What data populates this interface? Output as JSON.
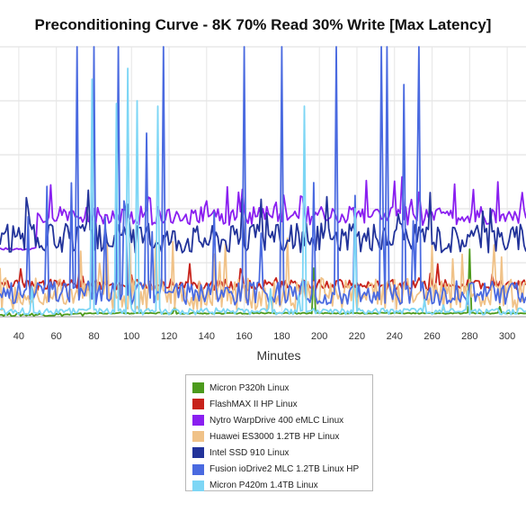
{
  "chart_data": {
    "type": "line",
    "title": "Preconditioning Curve - 8K 70% Read 30% Write [Max Latency]",
    "xlabel": "Minutes",
    "ylabel": "",
    "xlim": [
      30,
      310
    ],
    "x_ticks": [
      40,
      60,
      80,
      100,
      120,
      140,
      160,
      180,
      200,
      220,
      240,
      260,
      280,
      300
    ],
    "ylim": [
      0,
      100
    ],
    "y_ticks_labeled": false,
    "grid": true,
    "legend_position": "bottom-center",
    "series": [
      {
        "name": "Micron P320h Linux",
        "color": "#4c9a1c",
        "base": 1.2,
        "amp": 0.5,
        "seed": 1,
        "spike_prob": 0.02,
        "spike_min": 2,
        "spike_max": 10,
        "start": 75,
        "pre": 0.8,
        "fixed_spikes": [
          [
            197,
            18
          ],
          [
            280,
            25
          ]
        ]
      },
      {
        "name": "FlashMAX II HP Linux",
        "color": "#c7221a",
        "base": 11,
        "amp": 4,
        "seed": 2,
        "spike_prob": 0.05,
        "spike_min": 13,
        "spike_max": 20,
        "start": 30,
        "pre": 11,
        "fixed_spikes": []
      },
      {
        "name": "Nytro WarpDrive 400 eMLC Linux",
        "color": "#8a1ff0",
        "base": 36,
        "amp": 7,
        "seed": 3,
        "spike_prob": 0.08,
        "spike_min": 42,
        "spike_max": 52,
        "start": 50,
        "pre": 25,
        "fixed_spikes": []
      },
      {
        "name": "Huawei ES3000 1.2TB HP Linux",
        "color": "#f0c288",
        "base": 6,
        "amp": 12,
        "seed": 4,
        "spike_prob": 0.05,
        "spike_min": 18,
        "spike_max": 30,
        "start": 30,
        "pre": 6,
        "fixed_spikes": []
      },
      {
        "name": "Intel SSD 910 Linux",
        "color": "#22339a",
        "base": 27,
        "amp": 11,
        "seed": 5,
        "spike_prob": 0.04,
        "spike_min": 38,
        "spike_max": 48,
        "start": 30,
        "pre": 27,
        "fixed_spikes": []
      },
      {
        "name": "Fusion ioDrive2 MLC 1.2TB Linux HP",
        "color": "#4a6ae0",
        "base": 7,
        "amp": 9,
        "seed": 6,
        "spike_prob": 0.04,
        "spike_min": 30,
        "spike_max": 52,
        "start": 30,
        "pre": 7,
        "fixed_spikes": [
          [
            71,
            100
          ],
          [
            80,
            100
          ],
          [
            93,
            100
          ],
          [
            117,
            100
          ],
          [
            160,
            100
          ],
          [
            180,
            100
          ],
          [
            209,
            100
          ],
          [
            233,
            100
          ],
          [
            236,
            100
          ],
          [
            253,
            100
          ],
          [
            245,
            86
          ],
          [
            108,
            68
          ]
        ]
      },
      {
        "name": "Micron P420m 1.4TB Linux",
        "color": "#7dd6f5",
        "base": 1.5,
        "amp": 2.5,
        "seed": 7,
        "spike_prob": 0.03,
        "spike_min": 4,
        "spike_max": 12,
        "start": 30,
        "pre": 1.5,
        "fixed_spikes": [
          [
            79,
            88
          ],
          [
            92,
            79
          ],
          [
            98,
            92
          ],
          [
            103,
            80
          ],
          [
            114,
            78
          ],
          [
            192,
            78
          ],
          [
            219,
            40
          ]
        ]
      }
    ]
  }
}
